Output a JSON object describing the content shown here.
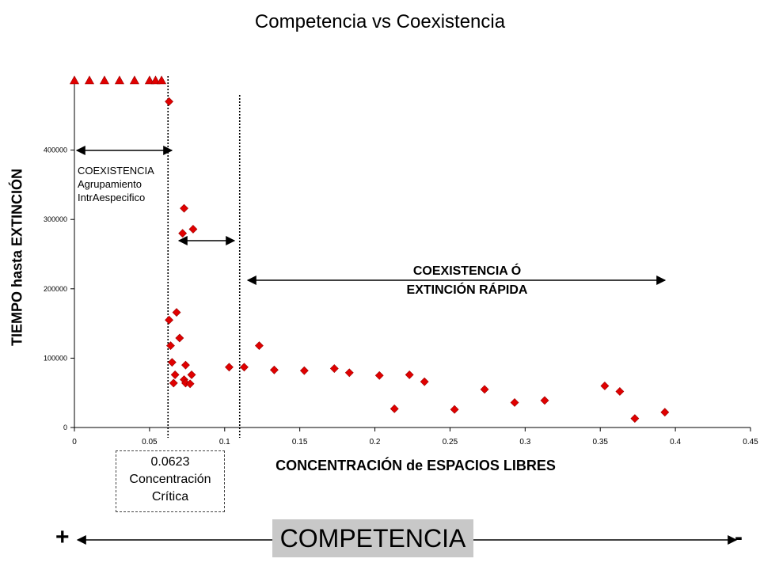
{
  "title": "Competencia vs Coexistencia",
  "chart_data": {
    "type": "scatter",
    "title": "Competencia vs Coexistencia",
    "xlabel": "CONCENTRACIÓN de ESPACIOS LIBRES",
    "ylabel": "TIEMPO hasta EXTINCIÓN",
    "xlim": [
      0,
      0.45
    ],
    "ylim": [
      0,
      500000
    ],
    "x_ticks": [
      "0",
      "0.05",
      "0.1",
      "0.15",
      "0.2",
      "0.25",
      "0.3",
      "0.35",
      "0.4",
      "0.45"
    ],
    "y_ticks": [
      "0",
      "100000",
      "200000",
      "300000",
      "400000"
    ],
    "grid": false,
    "series": [
      {
        "marker": "triangle",
        "color": "#e00000",
        "points": [
          {
            "x": 0.0,
            "y": 500000
          },
          {
            "x": 0.01,
            "y": 500000
          },
          {
            "x": 0.02,
            "y": 500000
          },
          {
            "x": 0.03,
            "y": 500000
          },
          {
            "x": 0.04,
            "y": 500000
          },
          {
            "x": 0.05,
            "y": 500000
          },
          {
            "x": 0.054,
            "y": 500000
          },
          {
            "x": 0.058,
            "y": 500000
          }
        ]
      },
      {
        "marker": "diamond",
        "color": "#e00000",
        "points": [
          {
            "x": 0.063,
            "y": 470000
          },
          {
            "x": 0.073,
            "y": 316000
          },
          {
            "x": 0.079,
            "y": 286000
          },
          {
            "x": 0.072,
            "y": 280000
          },
          {
            "x": 0.068,
            "y": 166000
          },
          {
            "x": 0.063,
            "y": 155000
          },
          {
            "x": 0.07,
            "y": 129000
          },
          {
            "x": 0.064,
            "y": 118000
          },
          {
            "x": 0.065,
            "y": 94000
          },
          {
            "x": 0.074,
            "y": 90000
          },
          {
            "x": 0.067,
            "y": 76000
          },
          {
            "x": 0.078,
            "y": 76000
          },
          {
            "x": 0.073,
            "y": 69000
          },
          {
            "x": 0.066,
            "y": 64000
          },
          {
            "x": 0.074,
            "y": 64000
          },
          {
            "x": 0.077,
            "y": 63000
          },
          {
            "x": 0.103,
            "y": 87000
          },
          {
            "x": 0.113,
            "y": 87000
          },
          {
            "x": 0.123,
            "y": 118000
          },
          {
            "x": 0.133,
            "y": 83000
          },
          {
            "x": 0.153,
            "y": 82000
          },
          {
            "x": 0.173,
            "y": 85000
          },
          {
            "x": 0.183,
            "y": 79000
          },
          {
            "x": 0.203,
            "y": 75000
          },
          {
            "x": 0.213,
            "y": 27000
          },
          {
            "x": 0.223,
            "y": 76000
          },
          {
            "x": 0.233,
            "y": 66000
          },
          {
            "x": 0.253,
            "y": 26000
          },
          {
            "x": 0.273,
            "y": 55000
          },
          {
            "x": 0.293,
            "y": 36000
          },
          {
            "x": 0.313,
            "y": 39000
          },
          {
            "x": 0.353,
            "y": 60000
          },
          {
            "x": 0.363,
            "y": 52000
          },
          {
            "x": 0.373,
            "y": 13000
          },
          {
            "x": 0.393,
            "y": 22000
          }
        ]
      }
    ],
    "vertical_lines": [
      0.0623,
      0.11
    ],
    "annotations": {
      "left_text": [
        "COEXISTENCIA",
        "Agrupamiento",
        "IntrAespecifico"
      ],
      "right_text": [
        "COEXISTENCIA Ó",
        "EXTINCIÓN RÁPIDA"
      ],
      "critical_value": "0.0623",
      "critical_label_1": "Concentración",
      "critical_label_2": "Crítica"
    }
  },
  "footer": {
    "plus": "+",
    "minus": "-",
    "label": "COMPETENCIA"
  }
}
